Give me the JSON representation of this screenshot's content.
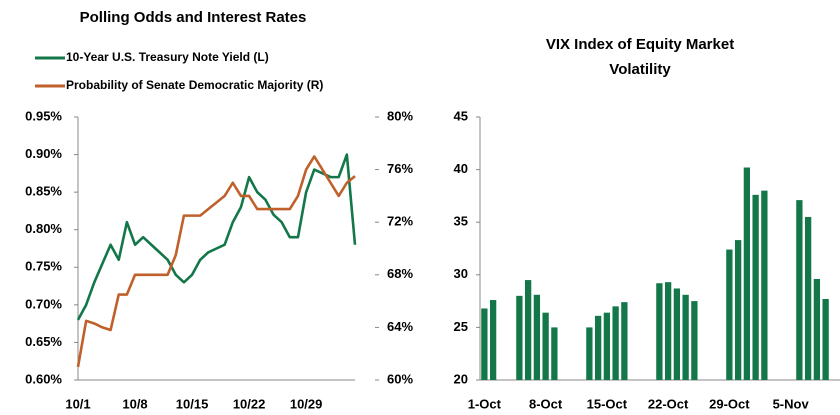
{
  "chart_data": [
    {
      "type": "line",
      "title": "Polling Odds and Interest Rates",
      "categories": [
        "10/1",
        null,
        null,
        null,
        null,
        null,
        null,
        "10/8",
        null,
        null,
        null,
        null,
        null,
        null,
        "10/15",
        null,
        null,
        null,
        null,
        null,
        null,
        "10/22",
        null,
        null,
        null,
        null,
        null,
        null,
        "10/29",
        null,
        null,
        null,
        null,
        null,
        null
      ],
      "series": [
        {
          "name": "10-Year U.S. Treasury Note Yield (L)",
          "color": "#13774a",
          "axis": "y",
          "values": [
            0.68,
            0.7,
            0.73,
            0.755,
            0.78,
            0.76,
            0.81,
            0.78,
            0.79,
            0.78,
            0.77,
            0.76,
            0.74,
            0.73,
            0.74,
            0.76,
            0.77,
            0.775,
            0.78,
            0.81,
            0.83,
            0.87,
            0.85,
            0.84,
            0.82,
            0.81,
            0.79,
            0.79,
            0.85,
            0.88,
            0.875,
            0.87,
            0.87,
            0.9,
            0.78
          ]
        },
        {
          "name": "Probability of Senate Democratic Majority (R)",
          "color": "#c0602a",
          "axis": "y2",
          "values": [
            61,
            64.5,
            64.3,
            64,
            63.8,
            66.5,
            66.5,
            68,
            68,
            68,
            68,
            68,
            69.5,
            72.5,
            72.5,
            72.5,
            73,
            73.5,
            74,
            75,
            74,
            74,
            73,
            73,
            73,
            73,
            73,
            74,
            76,
            77,
            76,
            75,
            74,
            75,
            75.5
          ]
        }
      ],
      "ylim": [
        0.6,
        0.95
      ],
      "yticks": [
        {
          "value": 0.6,
          "label": "0.60%"
        },
        {
          "value": 0.65,
          "label": "0.65%"
        },
        {
          "value": 0.7,
          "label": "0.70%"
        },
        {
          "value": 0.75,
          "label": "0.75%"
        },
        {
          "value": 0.8,
          "label": "0.80%"
        },
        {
          "value": 0.85,
          "label": "0.85%"
        },
        {
          "value": 0.9,
          "label": "0.90%"
        },
        {
          "value": 0.95,
          "label": "0.95%"
        }
      ],
      "y2lim": [
        60,
        80
      ],
      "y2ticks": [
        {
          "value": 60,
          "label": "60%"
        },
        {
          "value": 64,
          "label": "64%"
        },
        {
          "value": 68,
          "label": "68%"
        },
        {
          "value": 72,
          "label": "72%"
        },
        {
          "value": 76,
          "label": "76%"
        },
        {
          "value": 80,
          "label": "80%"
        }
      ],
      "legend": "top"
    },
    {
      "type": "bar",
      "title": [
        "VIX Index of Equity Market",
        "Volatility"
      ],
      "color": "#13774a",
      "categories": [
        "1-Oct",
        null,
        null,
        null,
        null,
        null,
        null,
        "8-Oct",
        null,
        null,
        null,
        null,
        null,
        null,
        "15-Oct",
        null,
        null,
        null,
        null,
        null,
        null,
        "22-Oct",
        null,
        null,
        null,
        null,
        null,
        null,
        "29-Oct",
        null,
        null,
        null,
        null,
        null,
        null,
        "5-Nov",
        null,
        null,
        null,
        null
      ],
      "values": [
        26.8,
        27.6,
        null,
        null,
        28.0,
        29.5,
        28.1,
        26.4,
        25.0,
        null,
        null,
        null,
        25.0,
        26.1,
        26.4,
        27.0,
        27.4,
        null,
        null,
        null,
        29.2,
        29.3,
        28.7,
        28.1,
        27.5,
        null,
        null,
        null,
        32.4,
        33.3,
        40.2,
        37.6,
        38.0,
        null,
        null,
        null,
        37.1,
        35.5,
        29.6,
        27.7
      ],
      "ylim": [
        20,
        45
      ],
      "yticks": [
        20,
        25,
        30,
        35,
        40,
        45
      ]
    }
  ]
}
